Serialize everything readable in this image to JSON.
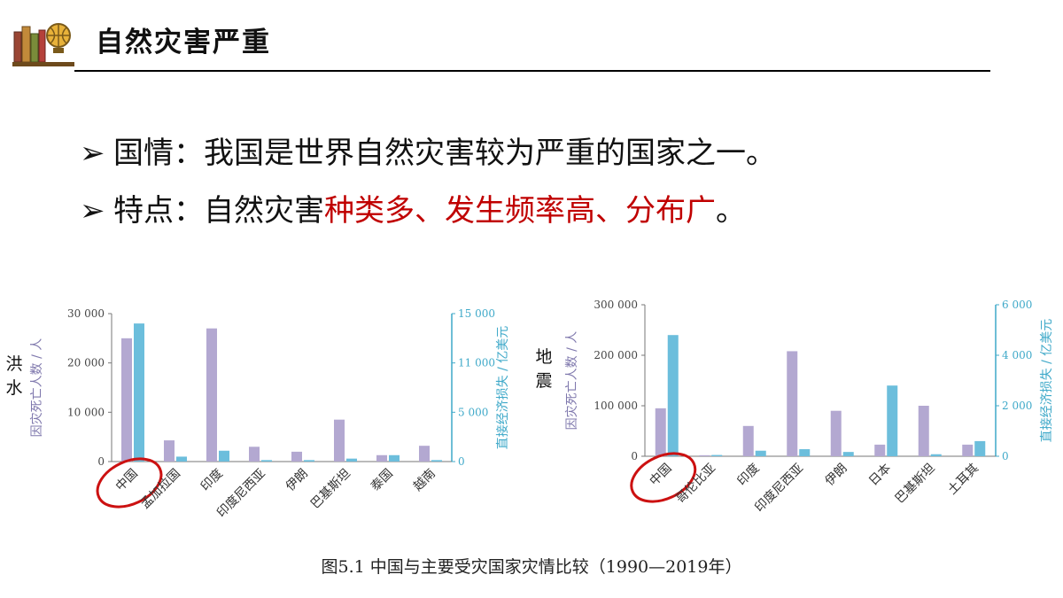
{
  "header": {
    "title": "自然灾害严重",
    "icon": "books-globe-icon"
  },
  "bullets": [
    {
      "label": "国情：",
      "text": "我国是世界自然灾害较为严重的国家之一。"
    },
    {
      "label": "特点：",
      "text_plain": "自然灾害",
      "text_highlight": "种类多、发生频率高、分布广",
      "text_end": "。"
    }
  ],
  "colors": {
    "deaths": "#b3a8d1",
    "losses": "#6cbedc",
    "left_axis": "#7f78ad",
    "right_axis": "#3fa9c9",
    "highlight": "#c00000",
    "circle": "#cc1111"
  },
  "flood_label": "洪水",
  "quake_label": "地震",
  "caption": "图5.1 中国与主要受灾国家灾情比较（1990—2019年）",
  "chart_data": [
    {
      "type": "bar",
      "categories": [
        "中国",
        "孟加拉国",
        "印度",
        "印度尼西亚",
        "伊朗",
        "巴基斯坦",
        "泰国",
        "越南"
      ],
      "series": [
        {
          "axis": "left",
          "values": [
            25000,
            4300,
            27000,
            3000,
            2000,
            8500,
            1300,
            3200
          ]
        },
        {
          "axis": "right",
          "values": [
            14000,
            500,
            1100,
            150,
            150,
            300,
            650,
            150
          ]
        }
      ],
      "ylabel": "因灾死亡人数 / 人",
      "y2label": "直接经济损失 / 亿美元",
      "ylim": [
        0,
        30000
      ],
      "y2lim": [
        0,
        15000
      ],
      "yticks": [
        "0",
        "10 000",
        "20 000",
        "30 000"
      ],
      "y2ticks": [
        "0",
        "5 000",
        "11 000",
        "15 000"
      ],
      "highlight": "中国"
    },
    {
      "type": "bar",
      "categories": [
        "中国",
        "哥伦比亚",
        "印度",
        "印度尼西亚",
        "伊朗",
        "日本",
        "巴基斯坦",
        "土耳其"
      ],
      "series": [
        {
          "axis": "left",
          "values": [
            95000,
            2000,
            60000,
            208000,
            90000,
            23000,
            100000,
            23000
          ]
        },
        {
          "axis": "right",
          "values": [
            4800,
            50,
            220,
            280,
            170,
            2800,
            80,
            600
          ]
        }
      ],
      "ylabel": "因灾死亡人数 / 人",
      "y2label": "直接经济损失 / 亿美元",
      "ylim": [
        0,
        300000
      ],
      "y2lim": [
        0,
        6000
      ],
      "yticks": [
        "0",
        "100 000",
        "200 000",
        "300 000"
      ],
      "y2ticks": [
        "0",
        "2 000",
        "4 000",
        "6 000"
      ],
      "highlight": "中国"
    }
  ]
}
